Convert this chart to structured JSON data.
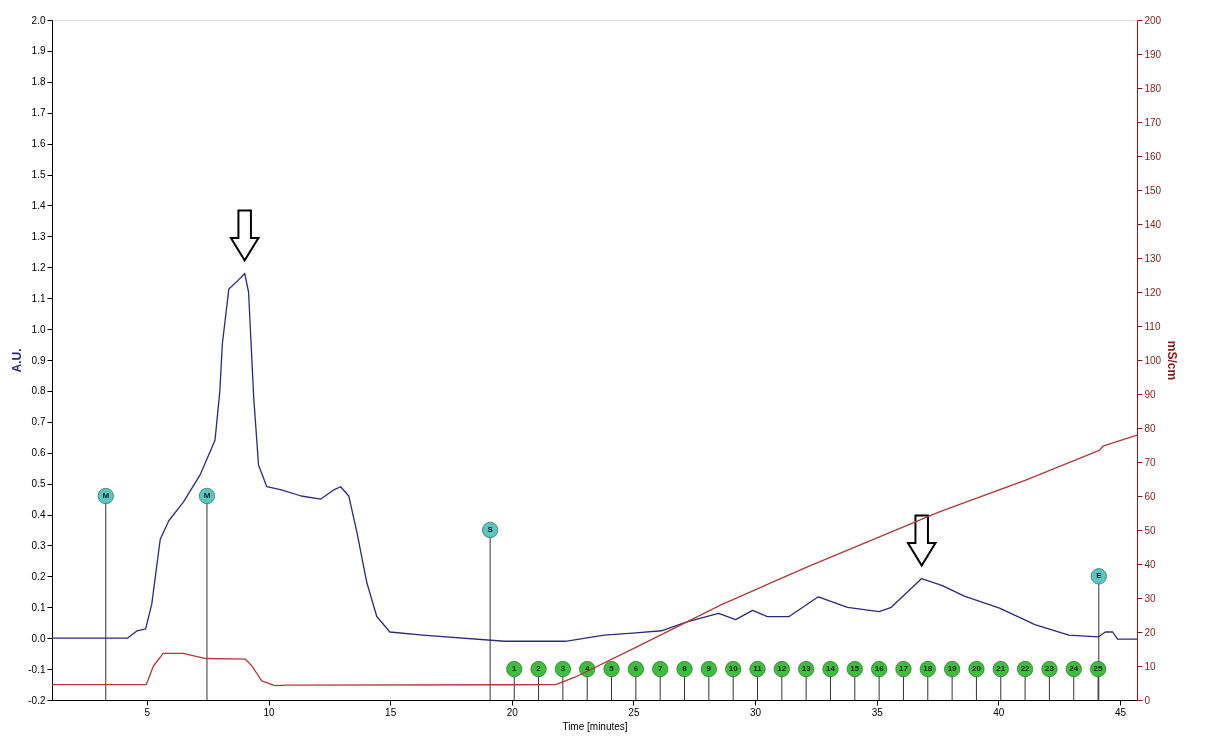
{
  "chart_data": {
    "type": "line",
    "xlabel": "Time [minutes]",
    "ylabel": "A.U.",
    "y2label": "mS/cm",
    "xlim": [
      1.1,
      45.7
    ],
    "xticks": [
      5,
      10,
      15,
      20,
      25,
      30,
      35,
      40,
      45
    ],
    "ylim": [
      -0.2,
      2.0
    ],
    "yticks": [
      {
        "value": 2.0,
        "label": "2.0"
      },
      1.9,
      1.8,
      1.7,
      1.6,
      1.5,
      1.4,
      1.3,
      1.2,
      1.1,
      {
        "value": 1.0,
        "label": "1.0"
      },
      0.9,
      0.8,
      0.7,
      0.6,
      0.5,
      0.4,
      0.3,
      0.2,
      0.1,
      {
        "value": 0.0,
        "label": "0.0"
      },
      -0.1,
      -0.2
    ],
    "y2lim": [
      0,
      200
    ],
    "y2ticks": [
      0,
      10,
      20,
      30,
      40,
      50,
      60,
      70,
      80,
      90,
      100,
      110,
      120,
      130,
      140,
      150,
      160,
      170,
      180,
      190,
      200
    ],
    "grid": false,
    "annotations": [
      {
        "text": "M",
        "x": 3.31,
        "y": 0.46
      },
      {
        "text": "M",
        "x": 7.47,
        "y": 0.46
      },
      {
        "text": "S",
        "x": 19.11,
        "y": 0.35
      },
      {
        "text": "E",
        "x": 44.13,
        "y": 0.2
      },
      {
        "text": "1",
        "x": 20.1,
        "y": -0.1
      },
      {
        "text": "2",
        "x": 21.1,
        "y": -0.1
      },
      {
        "text": "3",
        "x": 22.1,
        "y": -0.1
      },
      {
        "text": "4",
        "x": 23.1,
        "y": -0.1
      },
      {
        "text": "5",
        "x": 24.1,
        "y": -0.1
      },
      {
        "text": "6",
        "x": 25.1,
        "y": -0.1
      },
      {
        "text": "7",
        "x": 26.1,
        "y": -0.1
      },
      {
        "text": "8",
        "x": 27.1,
        "y": -0.1
      },
      {
        "text": "9",
        "x": 28.1,
        "y": -0.1
      },
      {
        "text": "10",
        "x": 29.1,
        "y": -0.1
      },
      {
        "text": "11",
        "x": 30.1,
        "y": -0.1
      },
      {
        "text": "12",
        "x": 31.1,
        "y": -0.1
      },
      {
        "text": "13",
        "x": 32.1,
        "y": -0.1
      },
      {
        "text": "14",
        "x": 33.1,
        "y": -0.1
      },
      {
        "text": "15",
        "x": 34.1,
        "y": -0.1
      },
      {
        "text": "16",
        "x": 35.1,
        "y": -0.1
      },
      {
        "text": "17",
        "x": 36.1,
        "y": -0.1
      },
      {
        "text": "18",
        "x": 37.1,
        "y": -0.1
      },
      {
        "text": "19",
        "x": 38.1,
        "y": -0.1
      },
      {
        "text": "20",
        "x": 39.1,
        "y": -0.1
      },
      {
        "text": "21",
        "x": 40.1,
        "y": -0.1
      },
      {
        "text": "22",
        "x": 41.1,
        "y": -0.1
      },
      {
        "text": "23",
        "x": 42.1,
        "y": -0.1
      },
      {
        "text": "24",
        "x": 43.1,
        "y": -0.1
      },
      {
        "text": "25",
        "x": 44.1,
        "y": -0.1
      }
    ],
    "series": [
      {
        "type": "line",
        "color": "#2b2b7a",
        "x": [
          1.1,
          4.2,
          4.6,
          4.95,
          5.2,
          5.55,
          5.9,
          6.5,
          7.2,
          7.8,
          8.0,
          8.1,
          8.37,
          8.78,
          9.02,
          9.18,
          9.39,
          9.59,
          9.93,
          10.53,
          11.34,
          12.15,
          12.69,
          12.96,
          13.3,
          13.64,
          14.04,
          14.45,
          14.99,
          16.34,
          19.7,
          22.2,
          23.8,
          25.1,
          26.15,
          27.2,
          28.5,
          29.2,
          29.9,
          30.5,
          31.4,
          32.6,
          33.8,
          35.1,
          35.6,
          36.85,
          37.7,
          38.6,
          40.05,
          41.5,
          42.9,
          44.1,
          44.4,
          44.7,
          44.9,
          45.7
        ],
        "values": [
          0.0,
          0.0,
          0.024,
          0.03,
          0.11,
          0.32,
          0.38,
          0.44,
          0.53,
          0.64,
          0.8,
          0.95,
          1.13,
          1.16,
          1.18,
          1.12,
          0.78,
          0.56,
          0.49,
          0.48,
          0.46,
          0.45,
          0.48,
          0.49,
          0.46,
          0.34,
          0.18,
          0.07,
          0.02,
          0.01,
          -0.01,
          -0.01,
          0.01,
          0.017,
          0.024,
          0.053,
          0.08,
          0.06,
          0.09,
          0.07,
          0.07,
          0.134,
          0.1,
          0.086,
          0.1,
          0.193,
          0.17,
          0.136,
          0.097,
          0.044,
          0.01,
          0.004,
          0.02,
          0.02,
          -0.003,
          -0.003
        ]
      },
      {
        "type": "line",
        "axis": "y2",
        "color": "#b03a3a",
        "x": [
          1.1,
          4.97,
          5.27,
          5.67,
          6.48,
          7.43,
          9.05,
          9.32,
          9.72,
          10.26,
          10.8,
          21.8,
          22.6,
          25.1,
          28.6,
          32.2,
          36.2,
          37.6,
          41.1,
          44.15,
          44.3,
          45.7
        ],
        "values": [
          4.5,
          4.5,
          10.0,
          13.7,
          13.7,
          12.2,
          12.0,
          10.0,
          5.6,
          4.2,
          4.4,
          4.5,
          6.7,
          15.5,
          28.0,
          39.3,
          51.2,
          55.4,
          64.6,
          73.4,
          74.7,
          77.9
        ]
      },
      {
        "type": "lollipop",
        "marker": "circle",
        "color": "#5cc4c4",
        "x": [
          3.31,
          7.47,
          19.11,
          44.13
        ],
        "values": [
          0.46,
          0.46,
          0.35,
          0.2
        ]
      },
      {
        "type": "lollipop",
        "marker": "circle",
        "color": "#3cbf3c",
        "x": [
          20.1,
          21.1,
          22.1,
          23.1,
          24.1,
          25.1,
          26.1,
          27.1,
          28.1,
          29.1,
          30.1,
          31.1,
          32.1,
          33.1,
          34.1,
          35.1,
          36.1,
          37.1,
          38.1,
          39.1,
          40.1,
          41.1,
          42.1,
          43.1,
          44.1
        ],
        "values": [
          -0.1,
          -0.1,
          -0.1,
          -0.1,
          -0.1,
          -0.1,
          -0.1,
          -0.1,
          -0.1,
          -0.1,
          -0.1,
          -0.1,
          -0.1,
          -0.1,
          -0.1,
          -0.1,
          -0.1,
          -0.1,
          -0.1,
          -0.1,
          -0.1,
          -0.1,
          -0.1,
          -0.1,
          -0.1
        ]
      }
    ]
  }
}
